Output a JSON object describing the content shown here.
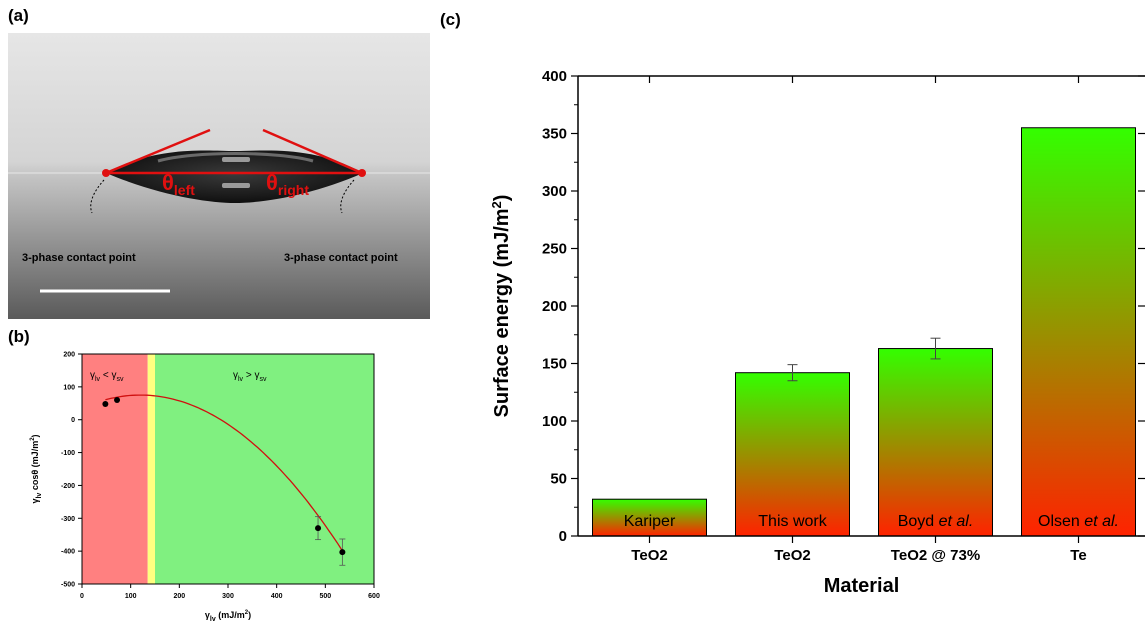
{
  "panels": {
    "a": {
      "label": "(a)",
      "theta_left_symbol": "θ",
      "theta_left_sub": "left",
      "theta_right_symbol": "θ",
      "theta_right_sub": "right",
      "contact_point_left": "3-phase contact point",
      "contact_point_right": "3-phase contact point",
      "colors": {
        "angle_lines": "#e01010",
        "background_top": "#dcdcdc",
        "background_bottom": "#6a6a6a"
      }
    },
    "b": {
      "label": "(b)"
    },
    "c": {
      "label": "(c)"
    }
  },
  "chart_data": [
    {
      "id": "b",
      "type": "scatter",
      "title": "",
      "xlabel": "γlv (mJ/m²)",
      "ylabel": "γlv cosθ (mJ/m²)",
      "xlim": [
        0,
        600
      ],
      "ylim": [
        -500,
        200
      ],
      "xticks": [
        0,
        100,
        200,
        300,
        400,
        500,
        600
      ],
      "yticks": [
        200,
        100,
        0,
        -100,
        -200,
        -300,
        -400,
        -500
      ],
      "regions": [
        {
          "label": "γlv < γsv",
          "from": 0,
          "to": 135,
          "color": "#ff8080"
        },
        {
          "label": "",
          "from": 135,
          "to": 150,
          "color": "#ffff80"
        },
        {
          "label": "γlv > γsv",
          "from": 150,
          "to": 600,
          "color": "#80f080"
        }
      ],
      "region_labels": [
        {
          "main": "γ",
          "sub1": "lv",
          "op": " < γ",
          "sub2": "sv"
        },
        {
          "main": "γ",
          "sub1": "lv",
          "op": " > γ",
          "sub2": "sv"
        }
      ],
      "points": [
        {
          "x": 48,
          "y": 48,
          "err": 0
        },
        {
          "x": 72,
          "y": 60,
          "err": 0
        },
        {
          "x": 485,
          "y": -330,
          "err": 35
        },
        {
          "x": 535,
          "y": -403,
          "err": 40
        }
      ],
      "fit_curve": {
        "vertex_x": 120,
        "vertex_y": 75,
        "a": -0.00275,
        "x_start": 48,
        "x_end": 538
      },
      "colors": {
        "fit": "#d01010",
        "points": "#000000"
      }
    },
    {
      "id": "c",
      "type": "bar",
      "title": "",
      "xlabel": "Material",
      "ylabel": "Surface energy (mJ/m²)",
      "ylim": [
        0,
        400
      ],
      "yticks": [
        0,
        50,
        100,
        150,
        200,
        250,
        300,
        350,
        400
      ],
      "categories": [
        "TeO2",
        "TeO2",
        "TeO2 @ 73%",
        "Te"
      ],
      "values": [
        32,
        142,
        163,
        355
      ],
      "errors": [
        0,
        7,
        9,
        0
      ],
      "bar_labels": [
        {
          "main": "Kariper",
          "ital": ""
        },
        {
          "main": "This work",
          "ital": ""
        },
        {
          "main": "Boyd ",
          "ital": "et al."
        },
        {
          "main": "Olsen ",
          "ital": "et al."
        }
      ],
      "colors": {
        "gradient_top": "#33ff00",
        "gradient_bottom": "#ff2200"
      }
    }
  ]
}
